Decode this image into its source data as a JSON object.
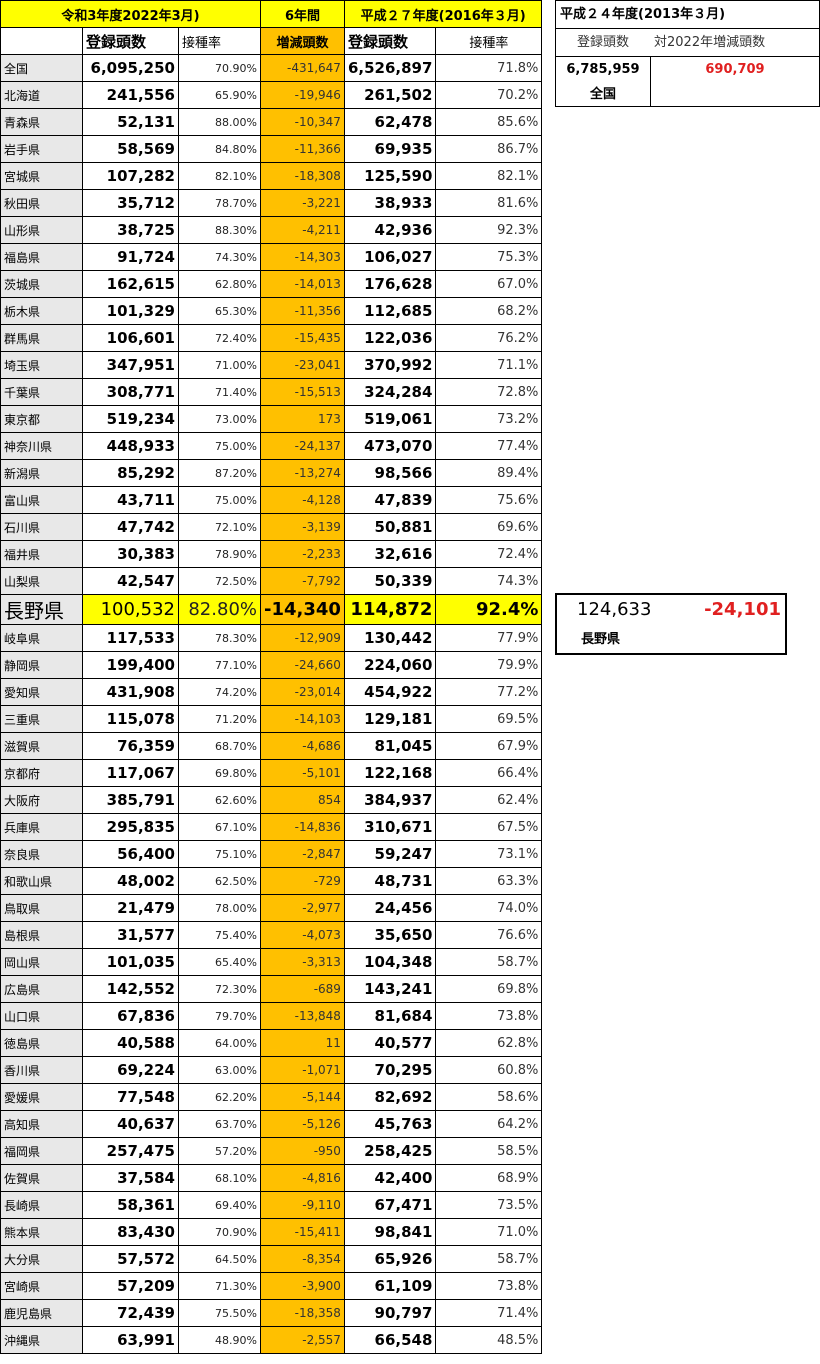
{
  "header": {
    "r3_title": "令和3年度2022年3月)",
    "six_years": "6年間",
    "h27_title": "平成２７年度(2016年３月)",
    "count": "登録頭数",
    "rate": "接種率",
    "diff": "増減頭数"
  },
  "side": {
    "title": "平成２４年度(2013年３月)",
    "count": "登録頭数",
    "diff": "対2022年増減頭数",
    "national_count": "6,785,959",
    "national_diff": "690,709",
    "national_label": "全国",
    "nagano_count": "124,633",
    "nagano_diff": "-24,101",
    "nagano_label": "長野県"
  },
  "colors": {
    "yellow": "#ffff00",
    "orange": "#ffc000",
    "red": "#e02020"
  },
  "highlight_row": "長野県",
  "rows": [
    [
      "全国",
      "6,095,250",
      "70.90%",
      "-431,647",
      "6,526,897",
      "71.8%"
    ],
    [
      "北海道",
      "241,556",
      "65.90%",
      "-19,946",
      "261,502",
      "70.2%"
    ],
    [
      "青森県",
      "52,131",
      "88.00%",
      "-10,347",
      "62,478",
      "85.6%"
    ],
    [
      "岩手県",
      "58,569",
      "84.80%",
      "-11,366",
      "69,935",
      "86.7%"
    ],
    [
      "宮城県",
      "107,282",
      "82.10%",
      "-18,308",
      "125,590",
      "82.1%"
    ],
    [
      "秋田県",
      "35,712",
      "78.70%",
      "-3,221",
      "38,933",
      "81.6%"
    ],
    [
      "山形県",
      "38,725",
      "88.30%",
      "-4,211",
      "42,936",
      "92.3%"
    ],
    [
      "福島県",
      "91,724",
      "74.30%",
      "-14,303",
      "106,027",
      "75.3%"
    ],
    [
      "茨城県",
      "162,615",
      "62.80%",
      "-14,013",
      "176,628",
      "67.0%"
    ],
    [
      "栃木県",
      "101,329",
      "65.30%",
      "-11,356",
      "112,685",
      "68.2%"
    ],
    [
      "群馬県",
      "106,601",
      "72.40%",
      "-15,435",
      "122,036",
      "76.2%"
    ],
    [
      "埼玉県",
      "347,951",
      "71.00%",
      "-23,041",
      "370,992",
      "71.1%"
    ],
    [
      "千葉県",
      "308,771",
      "71.40%",
      "-15,513",
      "324,284",
      "72.8%"
    ],
    [
      "東京都",
      "519,234",
      "73.00%",
      "173",
      "519,061",
      "73.2%"
    ],
    [
      "神奈川県",
      "448,933",
      "75.00%",
      "-24,137",
      "473,070",
      "77.4%"
    ],
    [
      "新潟県",
      "85,292",
      "87.20%",
      "-13,274",
      "98,566",
      "89.4%"
    ],
    [
      "富山県",
      "43,711",
      "75.00%",
      "-4,128",
      "47,839",
      "75.6%"
    ],
    [
      "石川県",
      "47,742",
      "72.10%",
      "-3,139",
      "50,881",
      "69.6%"
    ],
    [
      "福井県",
      "30,383",
      "78.90%",
      "-2,233",
      "32,616",
      "72.4%"
    ],
    [
      "山梨県",
      "42,547",
      "72.50%",
      "-7,792",
      "50,339",
      "74.3%"
    ],
    [
      "長野県",
      "100,532",
      "82.80%",
      "-14,340",
      "114,872",
      "92.4%"
    ],
    [
      "岐阜県",
      "117,533",
      "78.30%",
      "-12,909",
      "130,442",
      "77.9%"
    ],
    [
      "静岡県",
      "199,400",
      "77.10%",
      "-24,660",
      "224,060",
      "79.9%"
    ],
    [
      "愛知県",
      "431,908",
      "74.20%",
      "-23,014",
      "454,922",
      "77.2%"
    ],
    [
      "三重県",
      "115,078",
      "71.20%",
      "-14,103",
      "129,181",
      "69.5%"
    ],
    [
      "滋賀県",
      "76,359",
      "68.70%",
      "-4,686",
      "81,045",
      "67.9%"
    ],
    [
      "京都府",
      "117,067",
      "69.80%",
      "-5,101",
      "122,168",
      "66.4%"
    ],
    [
      "大阪府",
      "385,791",
      "62.60%",
      "854",
      "384,937",
      "62.4%"
    ],
    [
      "兵庫県",
      "295,835",
      "67.10%",
      "-14,836",
      "310,671",
      "67.5%"
    ],
    [
      "奈良県",
      "56,400",
      "75.10%",
      "-2,847",
      "59,247",
      "73.1%"
    ],
    [
      "和歌山県",
      "48,002",
      "62.50%",
      "-729",
      "48,731",
      "63.3%"
    ],
    [
      "鳥取県",
      "21,479",
      "78.00%",
      "-2,977",
      "24,456",
      "74.0%"
    ],
    [
      "島根県",
      "31,577",
      "75.40%",
      "-4,073",
      "35,650",
      "76.6%"
    ],
    [
      "岡山県",
      "101,035",
      "65.40%",
      "-3,313",
      "104,348",
      "58.7%"
    ],
    [
      "広島県",
      "142,552",
      "72.30%",
      "-689",
      "143,241",
      "69.8%"
    ],
    [
      "山口県",
      "67,836",
      "79.70%",
      "-13,848",
      "81,684",
      "73.8%"
    ],
    [
      "徳島県",
      "40,588",
      "64.00%",
      "11",
      "40,577",
      "62.8%"
    ],
    [
      "香川県",
      "69,224",
      "63.00%",
      "-1,071",
      "70,295",
      "60.8%"
    ],
    [
      "愛媛県",
      "77,548",
      "62.20%",
      "-5,144",
      "82,692",
      "58.6%"
    ],
    [
      "高知県",
      "40,637",
      "63.70%",
      "-5,126",
      "45,763",
      "64.2%"
    ],
    [
      "福岡県",
      "257,475",
      "57.20%",
      "-950",
      "258,425",
      "58.5%"
    ],
    [
      "佐賀県",
      "37,584",
      "68.10%",
      "-4,816",
      "42,400",
      "68.9%"
    ],
    [
      "長崎県",
      "58,361",
      "69.40%",
      "-9,110",
      "67,471",
      "73.5%"
    ],
    [
      "熊本県",
      "83,430",
      "70.90%",
      "-15,411",
      "98,841",
      "71.0%"
    ],
    [
      "大分県",
      "57,572",
      "64.50%",
      "-8,354",
      "65,926",
      "58.7%"
    ],
    [
      "宮崎県",
      "57,209",
      "71.30%",
      "-3,900",
      "61,109",
      "73.8%"
    ],
    [
      "鹿児島県",
      "72,439",
      "75.50%",
      "-18,358",
      "90,797",
      "71.4%"
    ],
    [
      "沖縄県",
      "63,991",
      "48.90%",
      "-2,557",
      "66,548",
      "48.5%"
    ]
  ]
}
